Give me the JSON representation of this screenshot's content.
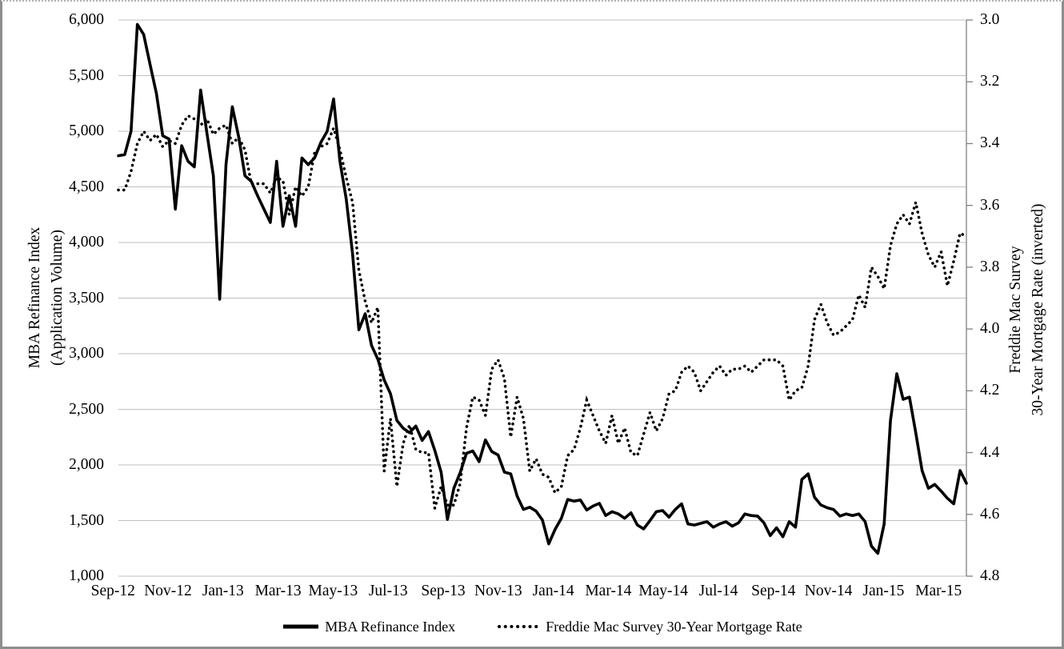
{
  "chart_data": {
    "type": "line",
    "title": "",
    "background": "#FFFFFF",
    "grid": {
      "color": "#BFBFBF",
      "horizontal": true,
      "vertical": false
    },
    "axis_line_color": "#808080",
    "text_color": "#000000",
    "x_axis": {
      "tick_labels": [
        "Sep-12",
        "Nov-12",
        "Jan-13",
        "Mar-13",
        "May-13",
        "Jul-13",
        "Sep-13",
        "Nov-13",
        "Jan-14",
        "Mar-14",
        "May-14",
        "Jul-14",
        "Sep-14",
        "Nov-14",
        "Jan-15",
        "Mar-15"
      ],
      "n_points": 135,
      "frequency": "weekly"
    },
    "left_axis": {
      "title_line1": "MBA Refinance Index",
      "title_line2": "(Application Volume)",
      "min": 1000,
      "max": 6000,
      "tick_step": 500,
      "tick_labels": [
        "6,000",
        "5,500",
        "5,000",
        "4,500",
        "4,000",
        "3,500",
        "3,000",
        "2,500",
        "2,000",
        "1,500",
        "1,000"
      ]
    },
    "right_axis": {
      "title_line1": "Freddie Mac Survey",
      "title_line2": "30-Year Mortgage Rate (inverted)",
      "min": 3.0,
      "max": 4.8,
      "tick_step": 0.2,
      "inverted": true,
      "tick_labels": [
        "3.0",
        "3.2",
        "3.4",
        "3.6",
        "3.8",
        "4.0",
        "4.2",
        "4.4",
        "4.6",
        "4.8"
      ]
    },
    "legend": {
      "position": "bottom"
    },
    "series": [
      {
        "name": "MBA Refinance Index",
        "axis": "left",
        "style": "solid",
        "color": "#000000",
        "values": [
          4780,
          4790,
          5000,
          5960,
          5870,
          5600,
          5340,
          4960,
          4930,
          4300,
          4870,
          4730,
          4680,
          5370,
          4980,
          4600,
          3490,
          4700,
          5220,
          4950,
          4600,
          4550,
          4420,
          4300,
          4180,
          4730,
          4145,
          4420,
          4145,
          4760,
          4700,
          4760,
          4900,
          5000,
          5290,
          4730,
          4390,
          3900,
          3215,
          3360,
          3075,
          2950,
          2765,
          2640,
          2400,
          2330,
          2290,
          2350,
          2220,
          2300,
          2130,
          1935,
          1510,
          1790,
          1930,
          2105,
          2125,
          2030,
          2225,
          2120,
          2090,
          1935,
          1920,
          1720,
          1600,
          1620,
          1585,
          1505,
          1290,
          1420,
          1520,
          1690,
          1675,
          1685,
          1595,
          1630,
          1655,
          1545,
          1580,
          1560,
          1520,
          1570,
          1460,
          1425,
          1500,
          1580,
          1590,
          1530,
          1600,
          1650,
          1470,
          1460,
          1475,
          1490,
          1440,
          1470,
          1490,
          1450,
          1480,
          1560,
          1545,
          1540,
          1480,
          1365,
          1435,
          1355,
          1490,
          1440,
          1870,
          1920,
          1710,
          1640,
          1615,
          1600,
          1540,
          1560,
          1545,
          1560,
          1490,
          1270,
          1205,
          1470,
          2400,
          2820,
          2590,
          2610,
          2290,
          1950,
          1790,
          1825,
          1765,
          1700,
          1650,
          1950,
          1835
        ]
      },
      {
        "name": "Freddie Mac Survey 30-Year Mortgage Rate",
        "axis": "right",
        "style": "dotted",
        "color": "#000000",
        "values": [
          3.55,
          3.55,
          3.49,
          3.4,
          3.36,
          3.39,
          3.37,
          3.41,
          3.39,
          3.4,
          3.34,
          3.31,
          3.32,
          3.34,
          3.32,
          3.37,
          3.35,
          3.34,
          3.4,
          3.38,
          3.42,
          3.53,
          3.53,
          3.53,
          3.56,
          3.51,
          3.52,
          3.63,
          3.54,
          3.57,
          3.54,
          3.43,
          3.41,
          3.4,
          3.35,
          3.42,
          3.51,
          3.59,
          3.81,
          3.91,
          3.98,
          3.93,
          4.46,
          4.29,
          4.51,
          4.37,
          4.31,
          4.39,
          4.4,
          4.4,
          4.58,
          4.51,
          4.57,
          4.57,
          4.5,
          4.32,
          4.22,
          4.23,
          4.28,
          4.13,
          4.1,
          4.16,
          4.35,
          4.22,
          4.29,
          4.46,
          4.42,
          4.47,
          4.48,
          4.53,
          4.51,
          4.41,
          4.39,
          4.32,
          4.23,
          4.28,
          4.33,
          4.37,
          4.28,
          4.37,
          4.32,
          4.4,
          4.41,
          4.34,
          4.27,
          4.33,
          4.29,
          4.21,
          4.2,
          4.14,
          4.12,
          4.14,
          4.2,
          4.17,
          4.14,
          4.12,
          4.15,
          4.13,
          4.13,
          4.12,
          4.14,
          4.12,
          4.1,
          4.1,
          4.1,
          4.12,
          4.23,
          4.2,
          4.19,
          4.12,
          3.97,
          3.92,
          3.98,
          4.02,
          4.01,
          3.99,
          3.97,
          3.89,
          3.93,
          3.8,
          3.83,
          3.87,
          3.73,
          3.66,
          3.63,
          3.66,
          3.59,
          3.69,
          3.76,
          3.8,
          3.75,
          3.86,
          3.78,
          3.69,
          3.7
        ]
      }
    ]
  }
}
